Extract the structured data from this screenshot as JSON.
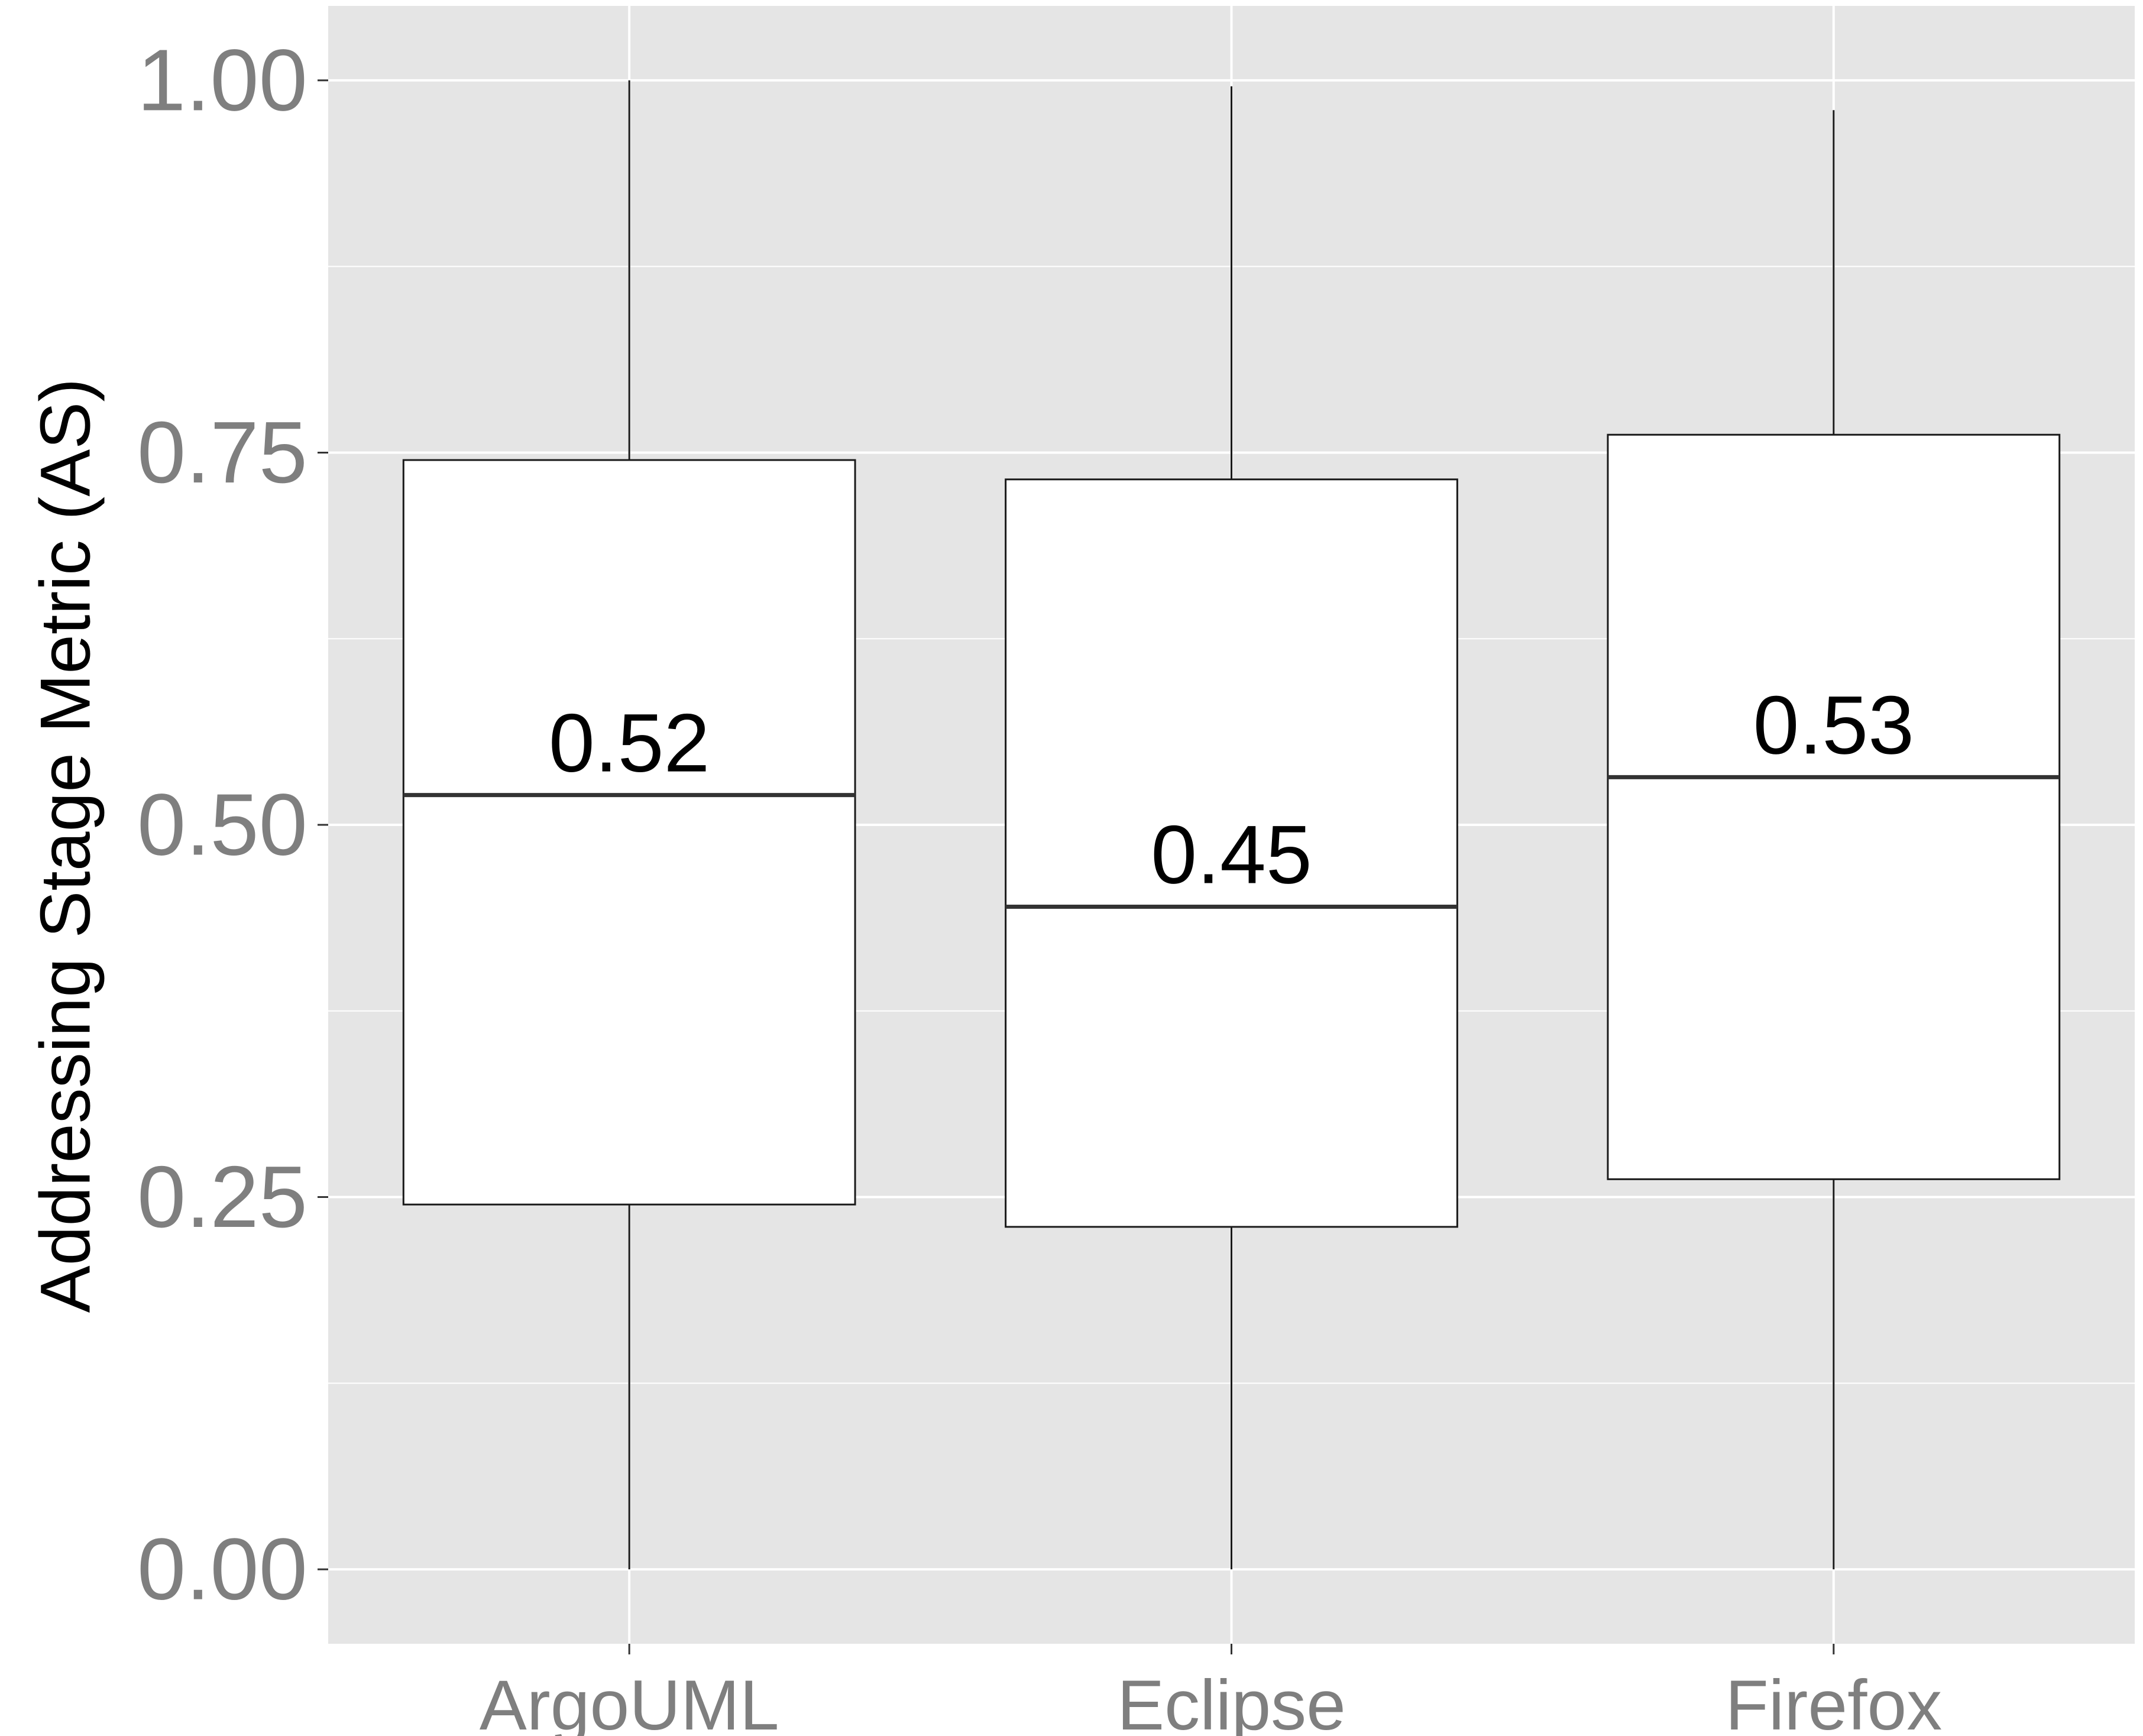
{
  "chart_data": {
    "type": "boxplot",
    "title": "",
    "xlabel": "",
    "ylabel": "Addressing Stage Metric (AS)",
    "ylim": [
      -0.05,
      1.05
    ],
    "y_ticks": [
      "0.00",
      "0.25",
      "0.50",
      "0.75",
      "1.00"
    ],
    "y_tick_values": [
      0,
      0.25,
      0.5,
      0.75,
      1.0
    ],
    "grid": true,
    "legend": "none",
    "categories": [
      "ArgoUML",
      "Eclipse",
      "Firefox"
    ],
    "boxes": [
      {
        "category": "ArgoUML",
        "min": 0.0,
        "q1": 0.245,
        "median": 0.52,
        "q3": 0.745,
        "max": 1.0,
        "label": "0.52"
      },
      {
        "category": "Eclipse",
        "min": 0.0,
        "q1": 0.23,
        "median": 0.445,
        "q3": 0.732,
        "max": 0.996,
        "label": "0.45"
      },
      {
        "category": "Firefox",
        "min": 0.0,
        "q1": 0.262,
        "median": 0.532,
        "q3": 0.762,
        "max": 0.98,
        "label": "0.53"
      }
    ],
    "colors": {
      "panel": "#e5e5e5",
      "grid": "#ffffff",
      "box_fill": "#ffffff",
      "box_line": "#1a1a1a",
      "tick_text": "#7f7f7f",
      "axis_title": "#000000"
    }
  }
}
